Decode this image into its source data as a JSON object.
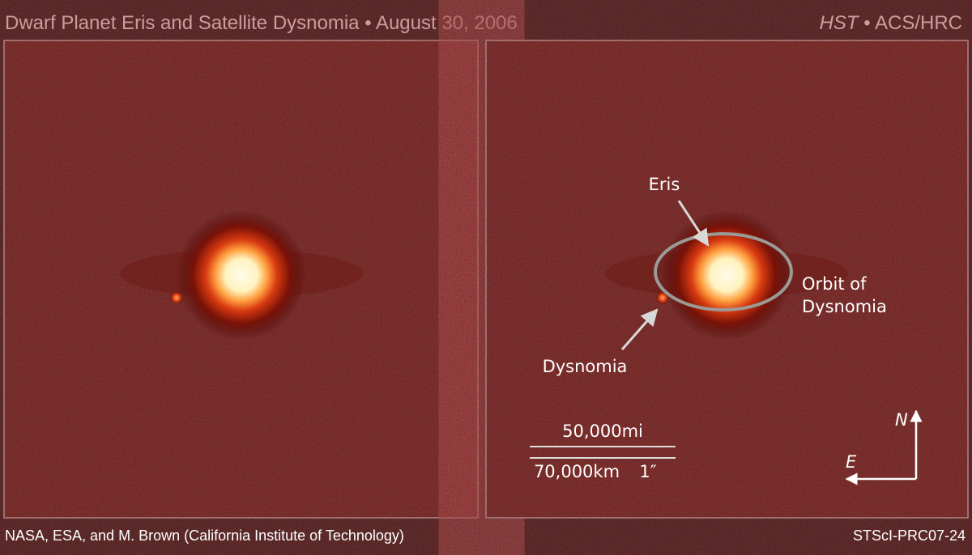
{
  "header": {
    "title": "Dwarf Planet Eris and Satellite Dysnomia • August 30, 2006",
    "instrument": "HST",
    "camera": "• ACS/HRC"
  },
  "labels": {
    "eris": "Eris",
    "orbit_line1": "Orbit of",
    "orbit_line2": "Dysnomia",
    "dysnomia": "Dysnomia"
  },
  "scale": {
    "miles": "50,000mi",
    "km": "70,000km",
    "arcsec": "1″"
  },
  "compass": {
    "north": "N",
    "east": "E"
  },
  "footer": {
    "credit": "NASA, ESA, and M. Brown (California Institute of Technology)",
    "id": "STScI-PRC07-24"
  }
}
